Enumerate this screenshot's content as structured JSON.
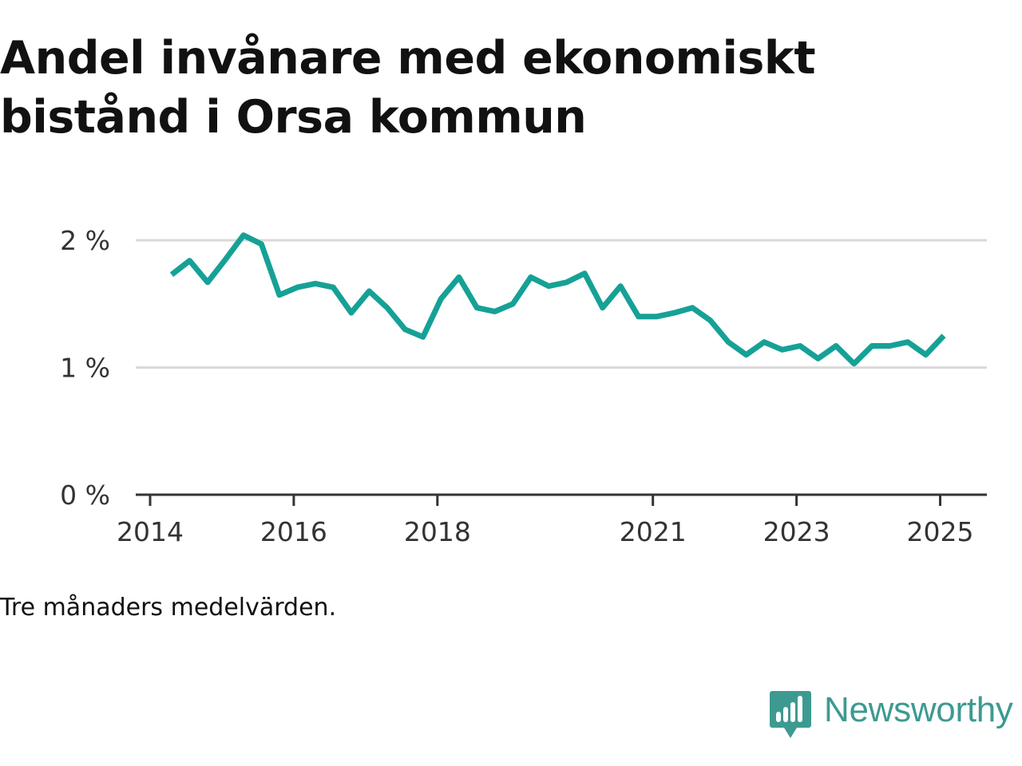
{
  "title_lines": [
    "Andel invånare med ekonomiskt",
    "bistånd i Orsa kommun"
  ],
  "note": "Tre månaders medelvärden.",
  "brand": {
    "name": "Newsworthy",
    "icon": "bar-chart-speech-bubble-icon",
    "color": "#3d9a91"
  },
  "chart_data": {
    "type": "line",
    "title": "Andel invånare med ekonomiskt bistånd i Orsa kommun",
    "subtitle": "",
    "xlabel": "",
    "ylabel": "",
    "x_unit": "year (decimal)",
    "ylim": [
      0,
      2.07
    ],
    "xlim": [
      2013.8,
      2025.65
    ],
    "grid": true,
    "line_color": "#16a196",
    "y_ticks": [
      {
        "value": 0,
        "label": "0 %"
      },
      {
        "value": 1,
        "label": "1 %"
      },
      {
        "value": 2,
        "label": "2 %"
      }
    ],
    "x_ticks": [
      {
        "value": 2014,
        "label": "2014"
      },
      {
        "value": 2016,
        "label": "2016"
      },
      {
        "value": 2018,
        "label": "2018"
      },
      {
        "value": 2021,
        "label": "2021"
      },
      {
        "value": 2023,
        "label": "2023"
      },
      {
        "value": 2025,
        "label": "2025"
      }
    ],
    "series": [
      {
        "x": [
          2014.3,
          2014.55,
          2014.8,
          2015.05,
          2015.3,
          2015.55,
          2015.8,
          2016.05,
          2016.3,
          2016.55,
          2016.8,
          2017.05,
          2017.3,
          2017.55,
          2017.8,
          2018.05,
          2018.3,
          2018.55,
          2018.8,
          2019.05,
          2019.3,
          2019.55,
          2019.8,
          2020.05,
          2020.3,
          2020.55,
          2020.8,
          2021.05,
          2021.3,
          2021.55,
          2021.8,
          2022.05,
          2022.3,
          2022.55,
          2022.8,
          2023.05,
          2023.3,
          2023.55,
          2023.8,
          2024.05,
          2024.3,
          2024.55,
          2024.8,
          2025.05
        ],
        "values": [
          1.73,
          1.84,
          1.67,
          1.85,
          2.04,
          1.97,
          1.57,
          1.63,
          1.66,
          1.63,
          1.43,
          1.6,
          1.47,
          1.3,
          1.24,
          1.54,
          1.71,
          1.47,
          1.44,
          1.5,
          1.71,
          1.64,
          1.67,
          1.74,
          1.47,
          1.64,
          1.4,
          1.4,
          1.43,
          1.47,
          1.37,
          1.2,
          1.1,
          1.2,
          1.14,
          1.17,
          1.07,
          1.17,
          1.03,
          1.17,
          1.17,
          1.2,
          1.1,
          1.25
        ]
      }
    ]
  }
}
